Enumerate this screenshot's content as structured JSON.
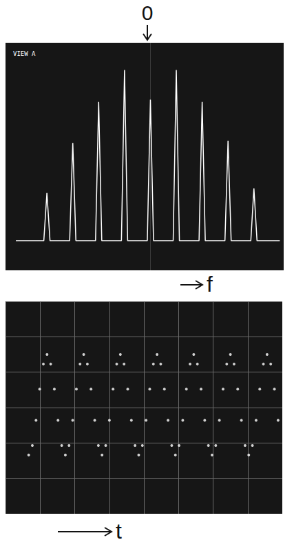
{
  "chart_data": [
    {
      "type": "line",
      "title": "VIEW A",
      "annotations": [
        "0"
      ],
      "x_label": "f",
      "xlim": [
        -5.6,
        5.15
      ],
      "ylim": [
        0,
        10
      ],
      "tick_labels": false,
      "grid": false,
      "series": [
        {
          "color": "#ffffff",
          "x": [
            -5.2,
            -4.12,
            -4,
            -3.88,
            -3.12,
            -3,
            -2.88,
            -2.12,
            -2,
            -1.88,
            -1.12,
            -1,
            -0.88,
            -0.12,
            0,
            0.12,
            0.88,
            1,
            1.12,
            1.88,
            2,
            2.12,
            2.88,
            3,
            3.12,
            3.88,
            4,
            4.12,
            5.0
          ],
          "values": [
            1.3,
            1.3,
            3.4,
            1.3,
            1.3,
            5.6,
            1.3,
            1.3,
            7.4,
            1.3,
            1.3,
            8.8,
            1.3,
            1.3,
            7.5,
            1.3,
            1.3,
            8.8,
            1.3,
            1.3,
            7.4,
            1.3,
            1.3,
            5.7,
            1.3,
            1.3,
            3.6,
            1.3,
            1.3
          ]
        }
      ]
    },
    {
      "type": "scatter",
      "x_label": "t",
      "marker": "circle",
      "xlim": [
        0,
        8
      ],
      "ylim": [
        0,
        6
      ],
      "xticks": [
        0,
        1,
        2,
        3,
        4,
        5,
        6,
        7,
        8
      ],
      "yticks": [
        0,
        1,
        2,
        3,
        4,
        5,
        6
      ],
      "tick_labels": false,
      "grid": true,
      "series": [
        {
          "color": "#ffffff",
          "x": [
            0.67,
            0.776,
            0.882,
            0.988,
            1.094,
            1.2,
            1.306,
            1.412,
            1.518,
            1.624,
            1.73,
            1.836,
            1.942,
            2.048,
            2.154,
            2.26,
            2.366,
            2.472,
            2.578,
            2.684,
            2.79,
            2.896,
            3.002,
            3.108,
            3.214,
            3.32,
            3.426,
            3.532,
            3.638,
            3.744,
            3.85,
            3.956,
            4.062,
            4.168,
            4.274,
            4.38,
            4.486,
            4.592,
            4.698,
            4.804,
            4.91,
            5.016,
            5.122,
            5.228,
            5.334,
            5.44,
            5.546,
            5.652,
            5.758,
            5.864,
            5.97,
            6.076,
            6.182,
            6.288,
            6.394,
            6.5,
            6.606,
            6.712,
            6.818,
            6.924,
            7.03,
            7.136,
            7.242,
            7.348,
            7.454,
            7.56,
            7.666,
            7.772,
            7.878
          ],
          "values": [
            1.66,
            1.93,
            2.64,
            3.52,
            4.23,
            4.5,
            4.23,
            3.52,
            2.64,
            1.93,
            1.66,
            1.93,
            2.64,
            3.52,
            4.23,
            4.5,
            4.23,
            3.52,
            2.64,
            1.93,
            1.66,
            1.93,
            2.64,
            3.52,
            4.23,
            4.5,
            4.23,
            3.52,
            2.64,
            1.93,
            1.66,
            1.93,
            2.64,
            3.52,
            4.23,
            4.5,
            4.23,
            3.52,
            2.64,
            1.93,
            1.66,
            1.93,
            2.64,
            3.52,
            4.23,
            4.5,
            4.23,
            3.52,
            2.64,
            1.93,
            1.66,
            1.93,
            2.64,
            3.52,
            4.23,
            4.5,
            4.23,
            3.52,
            2.64,
            1.93,
            1.66,
            1.93,
            2.64,
            3.52,
            4.23,
            4.5,
            4.23,
            3.52,
            2.64
          ]
        }
      ]
    }
  ]
}
